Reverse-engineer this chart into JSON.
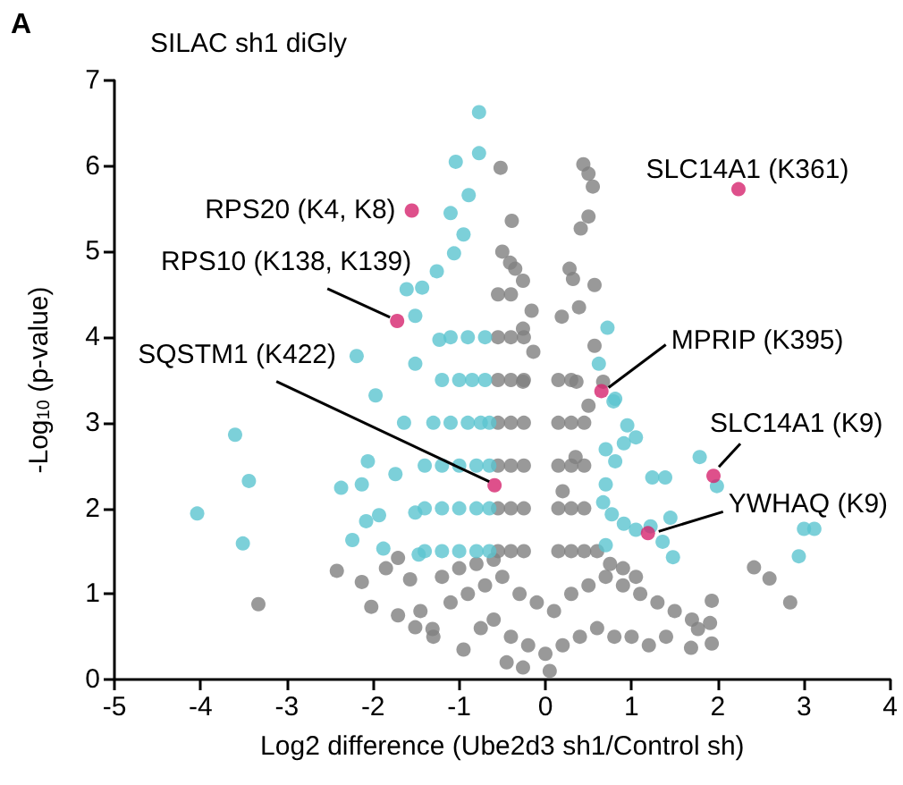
{
  "chart_data": {
    "type": "scatter",
    "title": "SILAC sh1 diGly",
    "xlabel": "Log2 difference (Ube2d3 sh1/Control sh)",
    "ylabel": "-Log$_{10}$ (p-value)",
    "xlim": [
      -5,
      4
    ],
    "xticks": [
      -5,
      -4,
      -3,
      -2,
      -1,
      0,
      1,
      2,
      3,
      4
    ],
    "ylim": [
      0,
      7
    ],
    "yticks": [
      0,
      1,
      2,
      3,
      4,
      5,
      6,
      7
    ],
    "grid": false,
    "marker": "circle",
    "series": [
      {
        "color": "#808080",
        "x": [
          -3.33,
          -2.42,
          -2.13,
          -2.02,
          -1.71,
          -1.51,
          -1.31,
          -1.85,
          -1.57,
          -1.71,
          -0.95,
          -0.26,
          -1.2,
          -1.0,
          -0.8,
          -0.6,
          -1.1,
          -0.9,
          -0.7,
          -0.5,
          -0.3,
          -0.1,
          0.1,
          0.3,
          0.5,
          0.7,
          0.9,
          1.1,
          1.3,
          1.5,
          1.7,
          -0.4,
          -0.2,
          0.0,
          0.2,
          0.4,
          0.6,
          0.8,
          1.0,
          1.2,
          1.4,
          -0.55,
          -0.4,
          -0.25,
          -0.55,
          -0.4,
          -0.25,
          -0.55,
          -0.4,
          -0.25,
          -0.55,
          -0.4,
          -0.25,
          -0.55,
          -0.4,
          -0.25,
          -0.55,
          -0.4,
          -0.25,
          -0.55,
          -0.4,
          -0.5,
          -0.35,
          0.15,
          0.3,
          0.45,
          0.15,
          0.3,
          0.45,
          0.15,
          0.3,
          0.45,
          0.15,
          0.3,
          0.45,
          0.15,
          0.3,
          0.5,
          0.44,
          0.5,
          0.55,
          0.5,
          0.41,
          -0.39,
          -0.52,
          0.28,
          0.57,
          0.32,
          0.19,
          0.39,
          0.57,
          0.36,
          0.67,
          -0.41,
          -0.26,
          -0.16,
          -0.26,
          -0.14,
          -0.26,
          2.42,
          2.6,
          2.84,
          1.93,
          1.91,
          1.93,
          1.69,
          1.77,
          -0.6,
          -0.45,
          0.05,
          0.6,
          0.75,
          0.9,
          1.05,
          -1.3,
          -1.45,
          -0.75,
          0.2,
          0.35
        ],
        "values": [
          0.88,
          1.27,
          1.14,
          0.85,
          0.75,
          0.61,
          0.59,
          1.3,
          1.17,
          1.42,
          0.35,
          0.14,
          1.2,
          1.3,
          1.35,
          1.4,
          0.9,
          1.0,
          1.1,
          1.2,
          1.0,
          0.9,
          0.8,
          1.0,
          1.1,
          1.2,
          1.1,
          1.0,
          0.9,
          0.8,
          0.7,
          0.5,
          0.4,
          0.3,
          0.4,
          0.5,
          0.6,
          0.5,
          0.5,
          0.4,
          0.5,
          1.5,
          1.5,
          1.5,
          2.0,
          2.0,
          2.0,
          2.5,
          2.5,
          2.5,
          3.0,
          3.0,
          3.0,
          3.5,
          3.5,
          3.5,
          4.0,
          4.0,
          4.0,
          4.5,
          4.5,
          5.0,
          4.8,
          1.5,
          1.5,
          1.5,
          2.0,
          2.0,
          2.0,
          2.5,
          2.5,
          2.5,
          3.0,
          3.0,
          3.0,
          3.5,
          3.5,
          3.2,
          6.02,
          5.91,
          5.76,
          5.41,
          5.27,
          5.36,
          5.98,
          4.8,
          4.61,
          4.68,
          4.24,
          4.35,
          3.9,
          3.48,
          3.48,
          4.87,
          4.66,
          4.31,
          4.1,
          3.83,
          3.48,
          1.31,
          1.18,
          0.9,
          0.92,
          0.66,
          0.42,
          0.37,
          0.59,
          0.7,
          0.2,
          0.1,
          1.5,
          1.35,
          1.3,
          1.2,
          0.5,
          0.8,
          0.6,
          2.2,
          2.6
        ]
      },
      {
        "color": "#5bc4d0",
        "x": [
          -3.6,
          -3.44,
          -4.04,
          -3.51,
          -0.77,
          -1.04,
          -0.77,
          -0.89,
          -1.1,
          -2.19,
          -1.97,
          -1.61,
          -1.43,
          -1.51,
          -1.26,
          -1.06,
          -0.95,
          -1.51,
          -1.23,
          -2.37,
          -2.13,
          -2.06,
          -2.08,
          -1.93,
          -2.24,
          -1.88,
          -1.64,
          -1.74,
          -1.51,
          -1.47,
          -1.4,
          -1.2,
          -1.0,
          -0.8,
          -0.65,
          -1.4,
          -1.2,
          -1.0,
          -0.8,
          -0.65,
          -1.4,
          -1.2,
          -1.0,
          -0.8,
          -0.65,
          -1.3,
          -1.1,
          -0.9,
          -0.75,
          -0.65,
          -1.2,
          -1.0,
          -0.85,
          -0.7,
          -1.1,
          -0.9,
          -0.7,
          0.72,
          0.62,
          0.81,
          0.79,
          0.95,
          1.05,
          0.7,
          0.81,
          0.91,
          1.24,
          1.39,
          1.79,
          1.99,
          0.7,
          0.67,
          0.77,
          0.91,
          1.05,
          1.22,
          1.45,
          1.36,
          1.48,
          0.7,
          3.0,
          3.12,
          2.94
        ],
        "values": [
          2.86,
          2.32,
          1.94,
          1.59,
          6.63,
          6.05,
          6.15,
          5.66,
          5.45,
          3.78,
          3.32,
          4.56,
          4.58,
          4.25,
          4.77,
          4.98,
          5.2,
          3.69,
          3.97,
          2.24,
          2.28,
          2.55,
          1.85,
          1.92,
          1.63,
          1.53,
          3.0,
          2.4,
          1.95,
          1.46,
          1.5,
          1.5,
          1.5,
          1.5,
          1.5,
          2.0,
          2.0,
          2.0,
          2.0,
          2.0,
          2.5,
          2.5,
          2.5,
          2.5,
          2.5,
          3.0,
          3.0,
          3.0,
          3.0,
          3.0,
          3.5,
          3.5,
          3.5,
          3.5,
          4.0,
          4.0,
          4.0,
          4.11,
          3.69,
          3.28,
          3.25,
          2.97,
          2.83,
          2.69,
          2.55,
          2.76,
          2.36,
          2.36,
          2.6,
          2.26,
          2.28,
          2.07,
          1.93,
          1.82,
          1.75,
          1.79,
          1.89,
          1.61,
          1.43,
          1.57,
          1.76,
          1.76,
          1.44
        ]
      },
      {
        "color": "#d6246e",
        "x": [
          2.24,
          -1.55,
          -1.72,
          -0.59,
          0.65,
          1.95,
          1.19
        ],
        "values": [
          5.73,
          5.48,
          4.19,
          2.27,
          3.37,
          2.38,
          1.71
        ]
      }
    ],
    "annotations": [
      "A",
      {
        "text": "SLC14A1 (K361)",
        "x": 2.24,
        "y": 5.73
      },
      {
        "text": "RPS20 (K4, K8)",
        "x": -1.55,
        "y": 5.48
      },
      {
        "text": "RPS10 (K138, K139)",
        "x": -1.72,
        "y": 4.19
      },
      {
        "text": "SQSTM1 (K422)",
        "x": -0.59,
        "y": 2.27
      },
      {
        "text": "MPRIP (K395)",
        "x": 0.65,
        "y": 3.37
      },
      {
        "text": "SLC14A1 (K9)",
        "x": 1.95,
        "y": 2.38
      },
      {
        "text": "YWHAQ (K9)",
        "x": 1.19,
        "y": 1.71
      }
    ]
  }
}
